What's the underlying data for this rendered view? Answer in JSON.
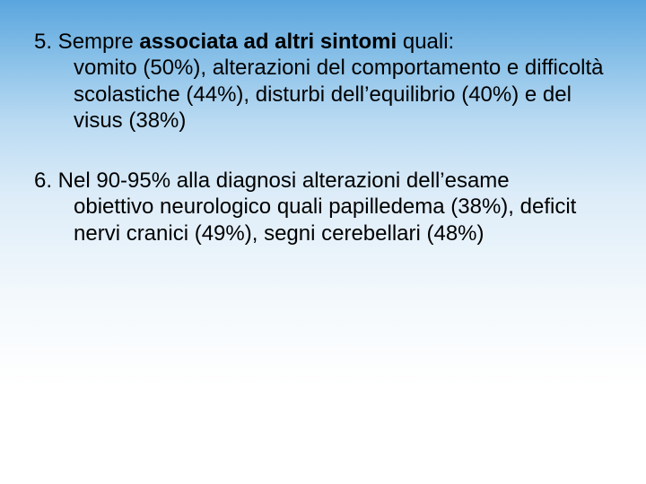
{
  "slide": {
    "background_gradient": [
      "#5aa5de",
      "#88c0e8",
      "#b9daf2",
      "#dcecf8",
      "#f2f8fc",
      "#ffffff"
    ],
    "font_family": "Arial",
    "text_color": "#000000",
    "font_size_pt": 24,
    "items": [
      {
        "number": "5.",
        "lead_plain": " Sempre ",
        "lead_bold": "associata ad altri sintomi",
        "lead_tail": " quali:",
        "body": "vomito (50%), alterazioni del comportamento e difficoltà scolastiche (44%), disturbi dell’equilibrio (40%) e del visus (38%)"
      },
      {
        "number": "6.",
        "lead_plain": " Nel 90-95% alla diagnosi alterazioni dell’esame",
        "lead_bold": "",
        "lead_tail": "",
        "body": "obiettivo neurologico quali papilledema (38%), deficit nervi cranici (49%), segni cerebellari (48%)"
      }
    ]
  }
}
